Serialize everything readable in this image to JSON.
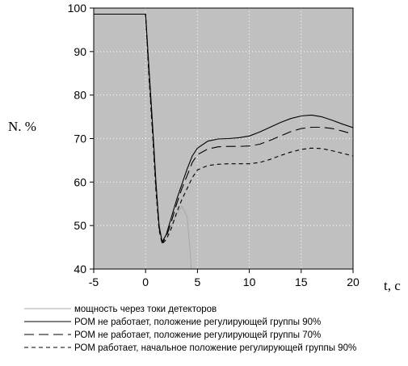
{
  "chart_data": {
    "type": "line",
    "ylabel": "N. %",
    "xlabel": "t, c",
    "xlim": [
      -5,
      20
    ],
    "ylim": [
      40,
      100
    ],
    "xticks": [
      -5,
      0,
      5,
      10,
      15,
      20
    ],
    "yticks": [
      40,
      50,
      60,
      70,
      80,
      90,
      100
    ],
    "grid": true,
    "legend_position": "bottom",
    "plot_background": "#c0c0c0",
    "grid_color": "#ffffff",
    "series": [
      {
        "name": "мощность через токи детекторов",
        "color": "#a8a8a8",
        "style": "solid",
        "x": [
          -5,
          0,
          0.3,
          0.7,
          1.0,
          1.3,
          1.6,
          2.0,
          2.5,
          3.0,
          3.5,
          4.0,
          4.3,
          4.4
        ],
        "y": [
          98.6,
          98.6,
          88,
          72,
          60,
          50,
          46.5,
          47.5,
          50,
          52.5,
          54.5,
          52,
          44,
          40
        ]
      },
      {
        "name": "РОМ не работает, положение регулирующей группы 90%",
        "color": "#000000",
        "style": "solid",
        "x": [
          -5,
          -2,
          0,
          0.3,
          0.7,
          1.0,
          1.3,
          1.6,
          2.0,
          2.5,
          3.0,
          3.5,
          4.0,
          4.5,
          5.0,
          6.0,
          7.0,
          8.0,
          9.0,
          10.0,
          11.0,
          12.0,
          13.0,
          14.0,
          15.0,
          16.0,
          17.0,
          18.0,
          19.0,
          20.0
        ],
        "y": [
          98.6,
          98.6,
          98.6,
          87,
          72,
          60,
          50,
          46.2,
          48,
          52,
          56,
          59.5,
          63,
          66,
          67.8,
          69.4,
          69.9,
          70,
          70.2,
          70.6,
          71.5,
          72.6,
          73.7,
          74.6,
          75.2,
          75.4,
          75,
          74.2,
          73.3,
          72.5
        ]
      },
      {
        "name": "РОМ не работает, положение регулирующей группы 70%",
        "color": "#000000",
        "style": "longdash",
        "x": [
          -5,
          -2,
          0,
          0.3,
          0.7,
          1.0,
          1.3,
          1.6,
          2.0,
          2.5,
          3.0,
          3.5,
          4.0,
          4.5,
          5.0,
          6.0,
          7.0,
          8.0,
          9.0,
          10.0,
          11.0,
          12.0,
          13.0,
          14.0,
          15.0,
          16.0,
          17.0,
          18.0,
          19.0,
          20.0
        ],
        "y": [
          98.6,
          98.6,
          98.6,
          86,
          71,
          59,
          49.5,
          46.0,
          47.5,
          51,
          55,
          58.5,
          61.5,
          64.5,
          66.3,
          67.6,
          68.1,
          68.2,
          68.2,
          68.3,
          68.7,
          69.6,
          70.6,
          71.6,
          72.3,
          72.6,
          72.6,
          72.3,
          71.7,
          71
        ]
      },
      {
        "name": "РОМ работает, начальное положение регулирующей группы 90%",
        "color": "#000000",
        "style": "shortdash",
        "x": [
          -5,
          -2,
          0,
          0.3,
          0.7,
          1.0,
          1.3,
          1.6,
          2.0,
          2.5,
          3.0,
          3.5,
          4.0,
          4.5,
          5.0,
          6.0,
          7.0,
          8.0,
          9.0,
          10.0,
          11.0,
          12.0,
          13.0,
          14.0,
          15.0,
          16.0,
          17.0,
          18.0,
          19.0,
          20.0
        ],
        "y": [
          98.6,
          98.6,
          98.6,
          85,
          70,
          58,
          49,
          45.8,
          46.8,
          49.5,
          53,
          56,
          58.5,
          61,
          62.8,
          63.8,
          64.1,
          64.2,
          64.2,
          64.2,
          64.5,
          65.2,
          66.1,
          66.9,
          67.5,
          67.8,
          67.7,
          67.2,
          66.6,
          66
        ]
      }
    ]
  }
}
